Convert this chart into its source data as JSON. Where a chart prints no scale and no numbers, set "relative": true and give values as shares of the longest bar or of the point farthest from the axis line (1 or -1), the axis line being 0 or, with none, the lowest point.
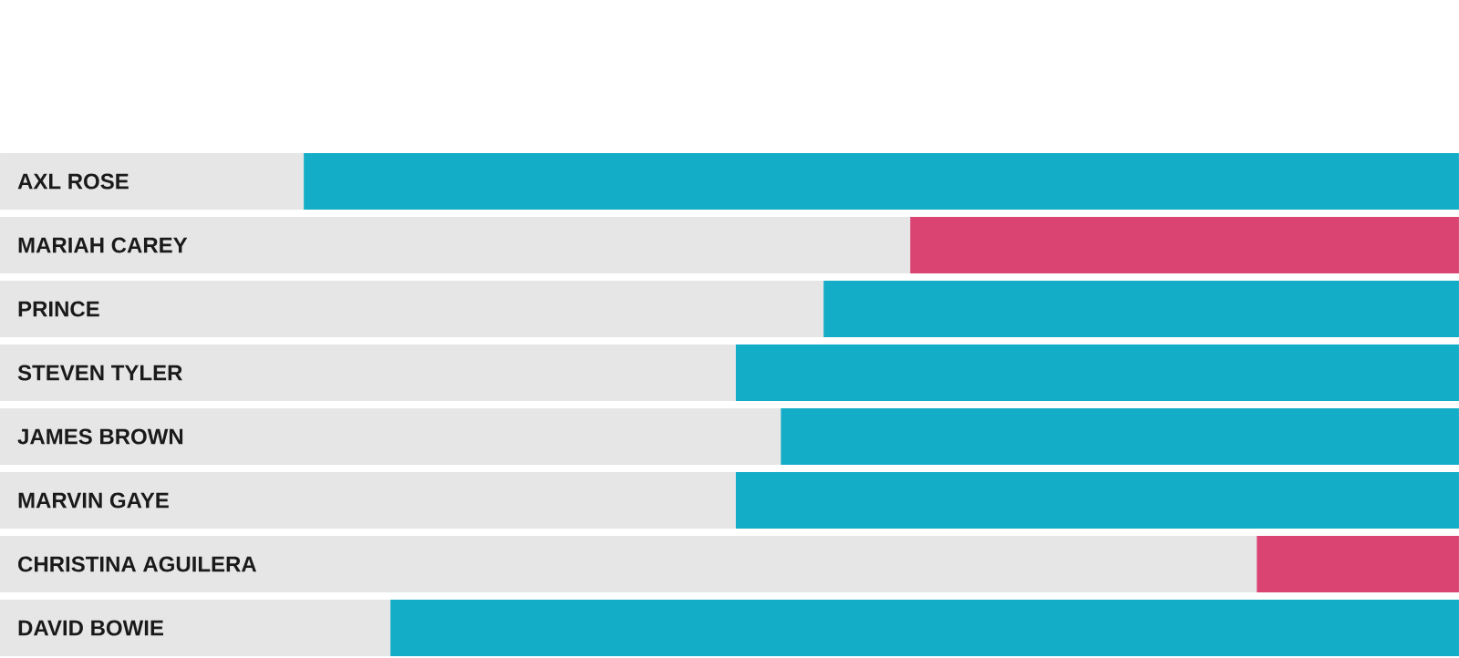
{
  "chart_data": {
    "type": "bar",
    "orientation": "horizontal",
    "relative": true,
    "categories": [
      "AXL ROSE",
      "MARIAH CAREY",
      "PRINCE",
      "STEVEN TYLER",
      "JAMES BROWN",
      "MARVIN GAYE",
      "CHRISTINA AGUILERA",
      "DAVID BOWIE"
    ],
    "values": [
      1,
      0.475,
      0.55,
      0.626,
      0.587,
      0.626,
      0.175,
      0.925
    ],
    "colors": [
      "#14adc8",
      "#d94473",
      "#14adc8",
      "#14adc8",
      "#14adc8",
      "#14adc8",
      "#d94473",
      "#14adc8"
    ]
  }
}
